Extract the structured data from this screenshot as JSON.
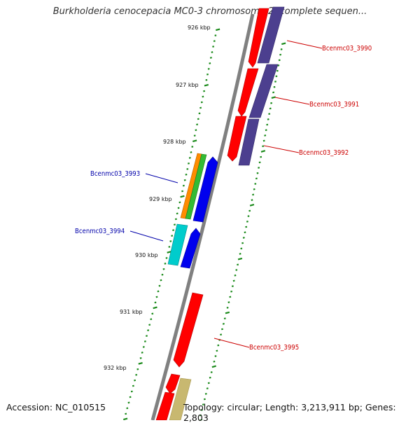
{
  "title": "Burkholderia cenocepacia MC0-3 chromosome 2, complete sequen...",
  "footer": {
    "accession": "Accession: NC_010515",
    "topology": "Topology: circular; Length: 3,213,911 bp; Genes: 2,803"
  },
  "colors": {
    "forward_gene": "#ff0000",
    "cog_purple": "#4c3f8f",
    "reverse_orange": "#ff8c00",
    "reverse_green": "#33bb33",
    "reverse_blue": "#0000ee",
    "reverse_cyan": "#00cccc",
    "olive": "#c8b870",
    "backbone": "#808080",
    "ticks": "#1a8a1a",
    "label_forward": "#cc0000",
    "label_reverse": "#0000aa"
  },
  "ticks": [
    {
      "label": "926 kbp"
    },
    {
      "label": "927 kbp"
    },
    {
      "label": "928 kbp"
    },
    {
      "label": "929 kbp"
    },
    {
      "label": "930 kbp"
    },
    {
      "label": "931 kbp"
    },
    {
      "label": "932 kbp"
    }
  ],
  "genes": [
    {
      "name": "Bcenmc03_3990",
      "strand": "forward"
    },
    {
      "name": "Bcenmc03_3991",
      "strand": "forward"
    },
    {
      "name": "Bcenmc03_3992",
      "strand": "forward"
    },
    {
      "name": "Bcenmc03_3993",
      "strand": "reverse"
    },
    {
      "name": "Bcenmc03_3994",
      "strand": "reverse"
    },
    {
      "name": "Bcenmc03_3995",
      "strand": "forward"
    }
  ]
}
